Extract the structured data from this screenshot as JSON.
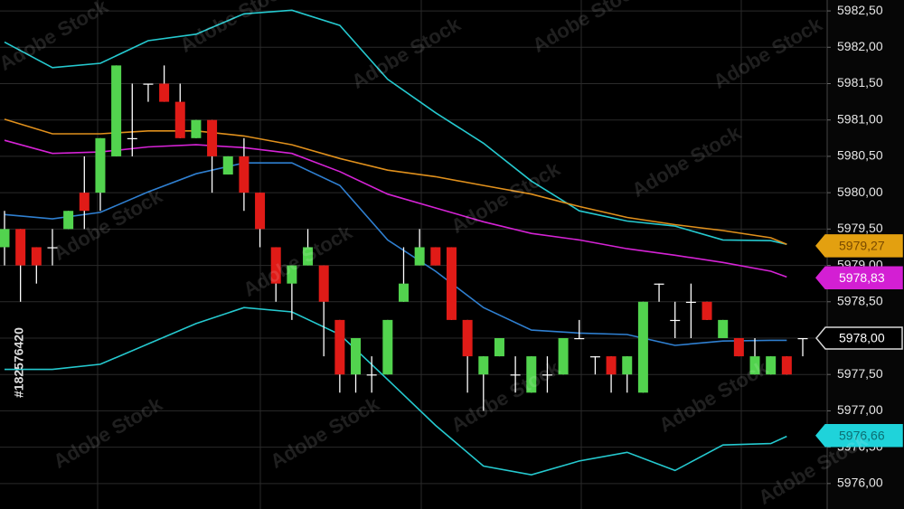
{
  "chart_data": {
    "type": "candlestick",
    "ylim": [
      5975.65,
      5982.65
    ],
    "yticks": [
      {
        "value": 5976.0,
        "label": "5976,00"
      },
      {
        "value": 5976.5,
        "label": "5976,50"
      },
      {
        "value": 5977.0,
        "label": "5977,00"
      },
      {
        "value": 5977.5,
        "label": "5977,50"
      },
      {
        "value": 5978.0,
        "label": "5978,00"
      },
      {
        "value": 5978.5,
        "label": "5978,50"
      },
      {
        "value": 5979.0,
        "label": "5979,00"
      },
      {
        "value": 5979.5,
        "label": "5979,50"
      },
      {
        "value": 5980.0,
        "label": "5980,00"
      },
      {
        "value": 5980.5,
        "label": "5980,50"
      },
      {
        "value": 5981.0,
        "label": "5981,00"
      },
      {
        "value": 5981.5,
        "label": "5981,50"
      },
      {
        "value": 5982.0,
        "label": "5982,00"
      },
      {
        "value": 5982.5,
        "label": "5982,50"
      }
    ],
    "grid": true,
    "up_color": "#52d34e",
    "down_color": "#e01b17",
    "wick_color": "#ffffff",
    "candles": {
      "open": [
        5979.25,
        5979.5,
        5979.25,
        5979.25,
        5979.5,
        5980.0,
        5980.0,
        5980.5,
        5980.75,
        5981.5,
        5981.5,
        5981.25,
        5980.75,
        5981.0,
        5980.25,
        5980.5,
        5980.0,
        5979.25,
        5978.75,
        5979.0,
        5979.0,
        5978.25,
        5977.5,
        5977.5,
        5977.5,
        5978.5,
        5979.0,
        5979.25,
        5979.25,
        5978.25,
        5977.5,
        5977.75,
        5977.5,
        5977.25,
        5977.5,
        5977.5,
        5978.0,
        5977.75,
        5977.75,
        5977.5,
        5977.25,
        5978.75,
        5978.25,
        5978.5,
        5978.5,
        5978.0,
        5978.0,
        5977.5,
        5977.5,
        5977.75,
        5978.0
      ],
      "high": [
        5979.75,
        5979.5,
        5979.25,
        5979.5,
        5979.75,
        5980.5,
        5980.75,
        5981.75,
        5981.5,
        5981.5,
        5981.75,
        5981.5,
        5981.0,
        5981.0,
        5980.5,
        5980.75,
        5980.0,
        5979.25,
        5979.0,
        5979.5,
        5979.0,
        5978.25,
        5978.0,
        5977.75,
        5978.25,
        5979.25,
        5979.5,
        5979.25,
        5979.25,
        5978.25,
        5977.75,
        5978.0,
        5977.75,
        5977.75,
        5977.75,
        5978.0,
        5978.25,
        5977.75,
        5977.75,
        5977.75,
        5978.5,
        5978.75,
        5978.5,
        5978.75,
        5978.5,
        5978.25,
        5978.0,
        5978.0,
        5977.75,
        5977.75,
        5978.0
      ],
      "low": [
        5979.0,
        5978.5,
        5978.75,
        5979.0,
        5979.5,
        5979.5,
        5979.75,
        5980.5,
        5980.5,
        5981.25,
        5981.25,
        5980.75,
        5980.75,
        5980.0,
        5980.25,
        5979.75,
        5979.25,
        5978.5,
        5978.25,
        5979.0,
        5977.75,
        5977.25,
        5977.25,
        5977.25,
        5977.5,
        5978.5,
        5979.0,
        5979.0,
        5978.25,
        5977.25,
        5977.0,
        5977.75,
        5977.25,
        5977.25,
        5977.25,
        5977.5,
        5978.0,
        5977.5,
        5977.25,
        5977.25,
        5977.25,
        5978.5,
        5978.0,
        5978.0,
        5978.25,
        5978.0,
        5977.75,
        5977.5,
        5977.5,
        5977.5,
        5977.75
      ],
      "close": [
        5979.5,
        5979.0,
        5979.0,
        5979.25,
        5979.75,
        5979.75,
        5980.75,
        5981.75,
        5980.75,
        5981.5,
        5981.25,
        5980.75,
        5981.0,
        5980.5,
        5980.5,
        5980.0,
        5979.5,
        5978.75,
        5979.0,
        5979.25,
        5978.5,
        5977.5,
        5978.0,
        5977.5,
        5978.25,
        5978.75,
        5979.25,
        5979.0,
        5978.25,
        5977.75,
        5977.75,
        5978.0,
        5977.5,
        5977.75,
        5977.5,
        5978.0,
        5978.0,
        5977.75,
        5977.5,
        5977.75,
        5978.5,
        5978.75,
        5978.25,
        5978.5,
        5978.25,
        5978.25,
        5977.75,
        5977.75,
        5977.75,
        5977.5,
        5978.0
      ]
    },
    "series": [
      {
        "color": "#25c9cf",
        "x": [
          0,
          3,
          6,
          9,
          12,
          15,
          18,
          21,
          24,
          27,
          30,
          33,
          36,
          39,
          42,
          45,
          48,
          49
        ],
        "values": [
          5982.07,
          5981.72,
          5981.78,
          5982.09,
          5982.18,
          5982.46,
          5982.51,
          5982.3,
          5981.56,
          5981.1,
          5980.68,
          5980.16,
          5979.75,
          5979.61,
          5979.54,
          5979.35,
          5979.34,
          5979.29
        ]
      },
      {
        "color": "#25c9cf",
        "x": [
          0,
          3,
          6,
          9,
          12,
          15,
          18,
          21,
          24,
          27,
          30,
          33,
          36,
          39,
          42,
          45,
          48,
          49
        ],
        "values": [
          5977.57,
          5977.57,
          5977.64,
          5977.92,
          5978.2,
          5978.42,
          5978.36,
          5978.05,
          5977.43,
          5976.8,
          5976.24,
          5976.12,
          5976.31,
          5976.43,
          5976.18,
          5976.53,
          5976.55,
          5976.65
        ]
      },
      {
        "color": "#2f7fd0",
        "x": [
          0,
          3,
          6,
          9,
          12,
          15,
          18,
          21,
          24,
          27,
          30,
          33,
          36,
          39,
          42,
          45,
          48,
          49
        ],
        "values": [
          5979.7,
          5979.64,
          5979.73,
          5980.01,
          5980.26,
          5980.41,
          5980.41,
          5980.1,
          5979.35,
          5978.92,
          5978.42,
          5978.11,
          5978.07,
          5978.05,
          5977.9,
          5977.96,
          5977.97,
          5977.97
        ]
      },
      {
        "color": "#e0901c",
        "x": [
          0,
          3,
          6,
          9,
          12,
          15,
          18,
          21,
          24,
          27,
          30,
          33,
          36,
          39,
          42,
          45,
          48,
          49
        ],
        "values": [
          5981.01,
          5980.81,
          5980.81,
          5980.85,
          5980.85,
          5980.78,
          5980.66,
          5980.47,
          5980.31,
          5980.22,
          5980.1,
          5979.98,
          5979.81,
          5979.66,
          5979.56,
          5979.48,
          5979.38,
          5979.29
        ]
      },
      {
        "color": "#d523d5",
        "x": [
          0,
          3,
          6,
          9,
          12,
          15,
          18,
          21,
          24,
          27,
          30,
          33,
          36,
          39,
          42,
          45,
          48,
          49
        ],
        "values": [
          5980.72,
          5980.54,
          5980.56,
          5980.63,
          5980.66,
          5980.62,
          5980.54,
          5980.29,
          5979.98,
          5979.79,
          5979.6,
          5979.44,
          5979.35,
          5979.23,
          5979.14,
          5979.04,
          5978.92,
          5978.84
        ]
      }
    ],
    "price_tags": [
      {
        "value": 5979.27,
        "label": "5979,27",
        "color": "#e3a010",
        "text_color": "#7a4a00"
      },
      {
        "value": 5978.83,
        "label": "5978,83",
        "color": "#d31fd3",
        "text_color": "#ffffff"
      },
      {
        "value": 5978.0,
        "label": "5978,00",
        "color": "#000000",
        "text_color": "#ffffff"
      },
      {
        "value": 5976.66,
        "label": "5976,66",
        "color": "#1fd3da",
        "text_color": "#0b6f73"
      }
    ],
    "watermark": "Adobe Stock",
    "stock_id": "#182576420"
  }
}
